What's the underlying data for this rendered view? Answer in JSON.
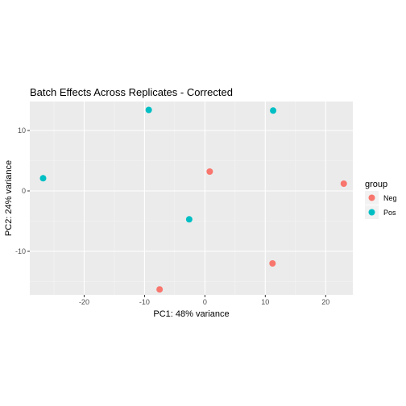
{
  "chart_data": {
    "type": "scatter",
    "title": "Batch Effects Across Replicates - Corrected",
    "xlabel": "PC1: 48% variance",
    "ylabel": "PC2: 24% variance",
    "xlim": [
      -29,
      24.5
    ],
    "ylim": [
      -17.2,
      14.8
    ],
    "xticks": [
      -20,
      -10,
      0,
      10,
      20
    ],
    "yticks": [
      -10,
      0,
      10
    ],
    "grid": true,
    "legend_position": "right",
    "legend_title": "group",
    "series": [
      {
        "name": "Neg",
        "color": "#F8766D",
        "points": [
          {
            "x": 0.8,
            "y": 3.2
          },
          {
            "x": 23.0,
            "y": 1.2
          },
          {
            "x": 11.2,
            "y": -12.0
          },
          {
            "x": -7.5,
            "y": -16.3
          }
        ]
      },
      {
        "name": "Pos",
        "color": "#00BFC4",
        "points": [
          {
            "x": -9.3,
            "y": 13.4
          },
          {
            "x": 11.3,
            "y": 13.3
          },
          {
            "x": -26.8,
            "y": 2.1
          },
          {
            "x": -2.6,
            "y": -4.7
          }
        ]
      }
    ]
  }
}
